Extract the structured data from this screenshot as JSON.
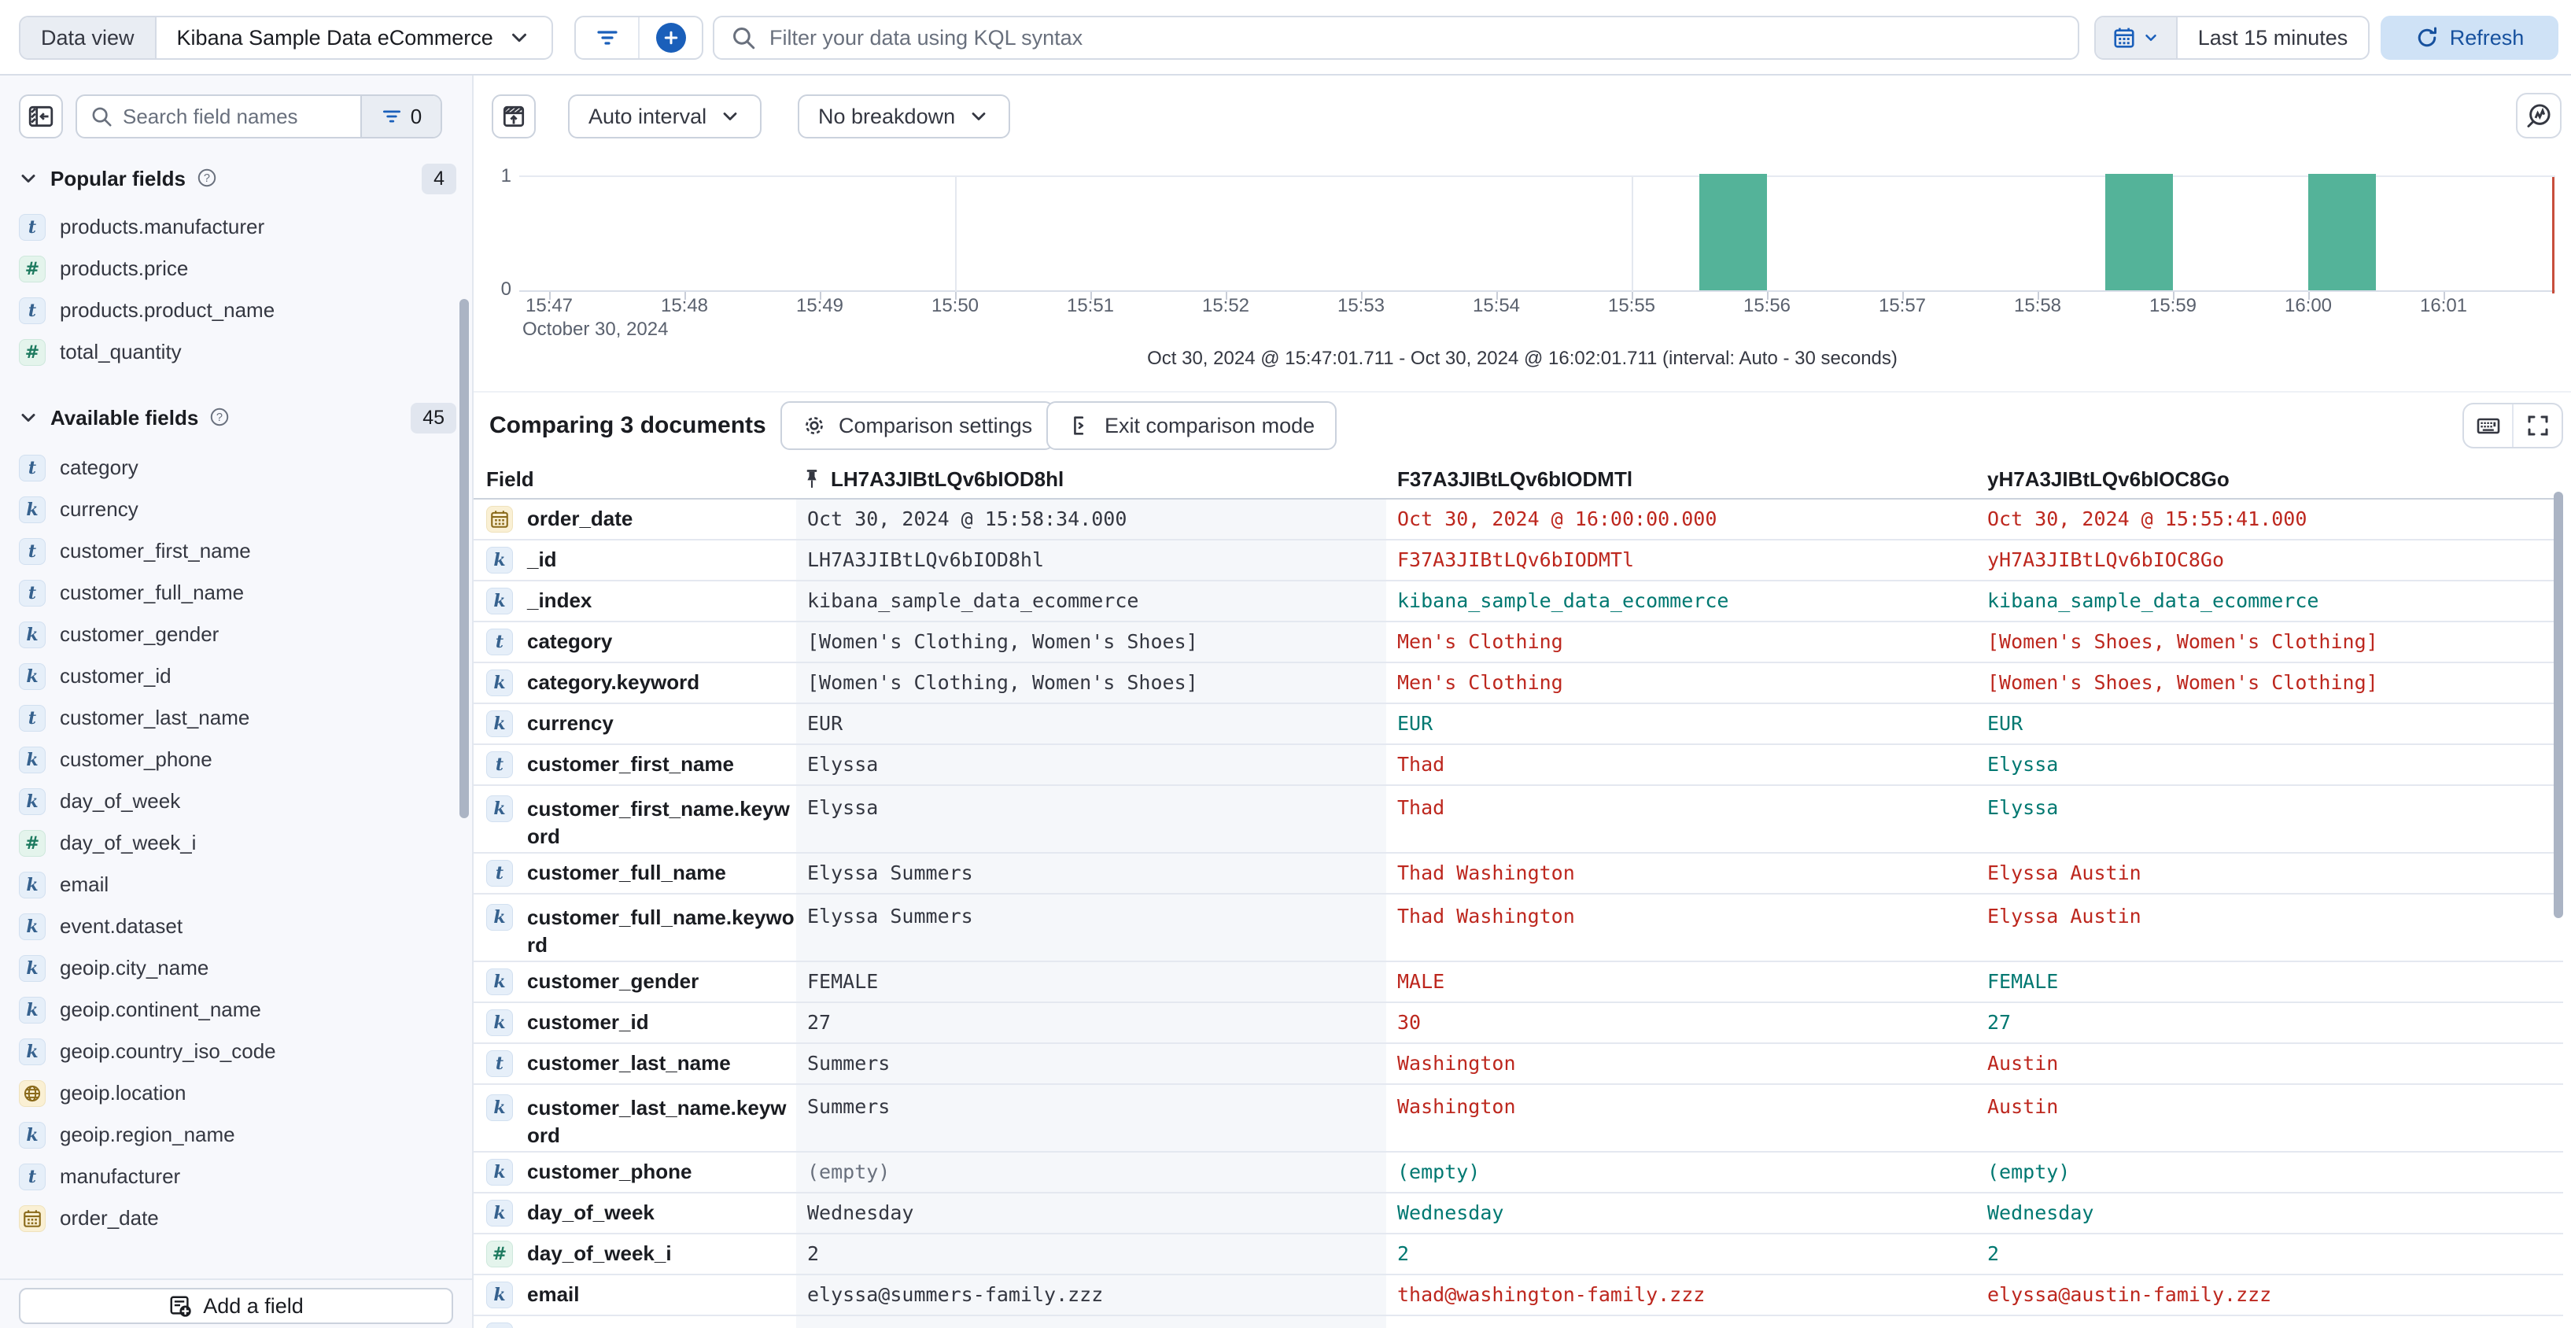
{
  "colors": {
    "accent": "#1A5FBA",
    "refresh_bg": "#CFE2F6",
    "refresh_text": "#17519E",
    "bar": "#54B399",
    "time_marker": "#C84E3C",
    "match": "#007871",
    "diff": "#BD271E",
    "base": "#343741",
    "muted": "#69707D"
  },
  "topbar": {
    "data_view_label": "Data view",
    "data_view_value": "Kibana Sample Data eCommerce",
    "kql_placeholder": "Filter your data using KQL syntax",
    "time_range": "Last 15 minutes",
    "refresh_label": "Refresh"
  },
  "sidebar": {
    "search_placeholder": "Search field names",
    "filter_count": "0",
    "popular": {
      "label": "Popular fields",
      "count": "4",
      "items": [
        {
          "icon": "t",
          "name": "products.manufacturer"
        },
        {
          "icon": "num",
          "name": "products.price"
        },
        {
          "icon": "t",
          "name": "products.product_name"
        },
        {
          "icon": "num",
          "name": "total_quantity"
        }
      ]
    },
    "available": {
      "label": "Available fields",
      "count": "45",
      "items": [
        {
          "icon": "t",
          "name": "category"
        },
        {
          "icon": "k",
          "name": "currency"
        },
        {
          "icon": "t",
          "name": "customer_first_name"
        },
        {
          "icon": "t",
          "name": "customer_full_name"
        },
        {
          "icon": "k",
          "name": "customer_gender"
        },
        {
          "icon": "k",
          "name": "customer_id"
        },
        {
          "icon": "t",
          "name": "customer_last_name"
        },
        {
          "icon": "k",
          "name": "customer_phone"
        },
        {
          "icon": "k",
          "name": "day_of_week"
        },
        {
          "icon": "num",
          "name": "day_of_week_i"
        },
        {
          "icon": "k",
          "name": "email"
        },
        {
          "icon": "k",
          "name": "event.dataset"
        },
        {
          "icon": "k",
          "name": "geoip.city_name"
        },
        {
          "icon": "k",
          "name": "geoip.continent_name"
        },
        {
          "icon": "k",
          "name": "geoip.country_iso_code"
        },
        {
          "icon": "geo",
          "name": "geoip.location"
        },
        {
          "icon": "k",
          "name": "geoip.region_name"
        },
        {
          "icon": "t",
          "name": "manufacturer"
        },
        {
          "icon": "date",
          "name": "order_date"
        }
      ]
    },
    "add_field_label": "Add a field"
  },
  "chart": {
    "interval_button": "Auto interval",
    "breakdown_button": "No breakdown",
    "y_ticks": [
      "1",
      "0"
    ],
    "x_ticks": [
      "15:47",
      "15:48",
      "15:49",
      "15:50",
      "15:51",
      "15:52",
      "15:53",
      "15:54",
      "15:55",
      "15:56",
      "15:57",
      "15:58",
      "15:59",
      "16:00",
      "16:01"
    ],
    "x_date_label": "October 30, 2024",
    "grid_tick_indexes": [
      3,
      8,
      13
    ],
    "bars": [
      {
        "time": "15:55:30",
        "count": 1,
        "offset_min": 8.5
      },
      {
        "time": "15:58:30",
        "count": 1,
        "offset_min": 11.5
      },
      {
        "time": "16:00:00",
        "count": 1,
        "offset_min": 13
      }
    ],
    "range_label": "Oct 30, 2024 @ 15:47:01.711 - Oct 30, 2024 @ 16:02:01.711 (interval: Auto - 30 seconds)"
  },
  "comparison": {
    "title": "Comparing 3 documents",
    "settings_label": "Comparison settings",
    "exit_label": "Exit comparison mode"
  },
  "table": {
    "field_header": "Field",
    "doc_headers": [
      "LH7A3JIBtLQv6bIOD8hl",
      "F37A3JIBtLQv6bIODMTl",
      "yH7A3JIBtLQv6bIOC8Go"
    ],
    "rows": [
      {
        "field": "order_date",
        "icon": "date",
        "tall": false,
        "values": [
          {
            "text": "Oct 30, 2024 @ 15:58:34.000",
            "tone": "base"
          },
          {
            "text": "Oct 30, 2024 @ 16:00:00.000",
            "tone": "diff"
          },
          {
            "text": "Oct 30, 2024 @ 15:55:41.000",
            "tone": "diff"
          }
        ]
      },
      {
        "field": "_id",
        "icon": "k",
        "tall": false,
        "values": [
          {
            "text": "LH7A3JIBtLQv6bIOD8hl",
            "tone": "base"
          },
          {
            "text": "F37A3JIBtLQv6bIODMTl",
            "tone": "diff"
          },
          {
            "text": "yH7A3JIBtLQv6bIOC8Go",
            "tone": "diff"
          }
        ]
      },
      {
        "field": "_index",
        "icon": "k",
        "tall": false,
        "values": [
          {
            "text": "kibana_sample_data_ecommerce",
            "tone": "base"
          },
          {
            "text": "kibana_sample_data_ecommerce",
            "tone": "match"
          },
          {
            "text": "kibana_sample_data_ecommerce",
            "tone": "match"
          }
        ]
      },
      {
        "field": "category",
        "icon": "t",
        "tall": false,
        "values": [
          {
            "text": "[Women's Clothing, Women's Shoes]",
            "tone": "base"
          },
          {
            "text": "Men's Clothing",
            "tone": "diff"
          },
          {
            "text": "[Women's Shoes, Women's Clothing]",
            "tone": "diff"
          }
        ]
      },
      {
        "field": "category.keyword",
        "icon": "k",
        "tall": false,
        "values": [
          {
            "text": "[Women's Clothing, Women's Shoes]",
            "tone": "base"
          },
          {
            "text": "Men's Clothing",
            "tone": "diff"
          },
          {
            "text": "[Women's Shoes, Women's Clothing]",
            "tone": "diff"
          }
        ]
      },
      {
        "field": "currency",
        "icon": "k",
        "tall": false,
        "values": [
          {
            "text": "EUR",
            "tone": "base"
          },
          {
            "text": "EUR",
            "tone": "match"
          },
          {
            "text": "EUR",
            "tone": "match"
          }
        ]
      },
      {
        "field": "customer_first_name",
        "icon": "t",
        "tall": false,
        "values": [
          {
            "text": "Elyssa",
            "tone": "base"
          },
          {
            "text": "Thad",
            "tone": "diff"
          },
          {
            "text": "Elyssa",
            "tone": "match"
          }
        ]
      },
      {
        "field": "customer_first_name.keyword",
        "icon": "k",
        "tall": true,
        "values": [
          {
            "text": "Elyssa",
            "tone": "base"
          },
          {
            "text": "Thad",
            "tone": "diff"
          },
          {
            "text": "Elyssa",
            "tone": "match"
          }
        ]
      },
      {
        "field": "customer_full_name",
        "icon": "t",
        "tall": false,
        "values": [
          {
            "text": "Elyssa Summers",
            "tone": "base"
          },
          {
            "text": "Thad Washington",
            "tone": "diff"
          },
          {
            "text": "Elyssa Austin",
            "tone": "diff"
          }
        ]
      },
      {
        "field": "customer_full_name.keyword",
        "icon": "k",
        "tall": true,
        "values": [
          {
            "text": "Elyssa Summers",
            "tone": "base"
          },
          {
            "text": "Thad Washington",
            "tone": "diff"
          },
          {
            "text": "Elyssa Austin",
            "tone": "diff"
          }
        ]
      },
      {
        "field": "customer_gender",
        "icon": "k",
        "tall": false,
        "values": [
          {
            "text": "FEMALE",
            "tone": "base"
          },
          {
            "text": "MALE",
            "tone": "diff"
          },
          {
            "text": "FEMALE",
            "tone": "match"
          }
        ]
      },
      {
        "field": "customer_id",
        "icon": "k",
        "tall": false,
        "values": [
          {
            "text": "27",
            "tone": "base"
          },
          {
            "text": "30",
            "tone": "diff"
          },
          {
            "text": "27",
            "tone": "match"
          }
        ]
      },
      {
        "field": "customer_last_name",
        "icon": "t",
        "tall": false,
        "values": [
          {
            "text": "Summers",
            "tone": "base"
          },
          {
            "text": "Washington",
            "tone": "diff"
          },
          {
            "text": "Austin",
            "tone": "diff"
          }
        ]
      },
      {
        "field": "customer_last_name.keyword",
        "icon": "k",
        "tall": true,
        "values": [
          {
            "text": "Summers",
            "tone": "base"
          },
          {
            "text": "Washington",
            "tone": "diff"
          },
          {
            "text": "Austin",
            "tone": "diff"
          }
        ]
      },
      {
        "field": "customer_phone",
        "icon": "k",
        "tall": false,
        "values": [
          {
            "text": "(empty)",
            "tone": "muted"
          },
          {
            "text": "(empty)",
            "tone": "match"
          },
          {
            "text": "(empty)",
            "tone": "match"
          }
        ]
      },
      {
        "field": "day_of_week",
        "icon": "k",
        "tall": false,
        "values": [
          {
            "text": "Wednesday",
            "tone": "base"
          },
          {
            "text": "Wednesday",
            "tone": "match"
          },
          {
            "text": "Wednesday",
            "tone": "match"
          }
        ]
      },
      {
        "field": "day_of_week_i",
        "icon": "num",
        "tall": false,
        "values": [
          {
            "text": "2",
            "tone": "base"
          },
          {
            "text": "2",
            "tone": "match"
          },
          {
            "text": "2",
            "tone": "match"
          }
        ]
      },
      {
        "field": "email",
        "icon": "k",
        "tall": false,
        "values": [
          {
            "text": "elyssa@summers-family.zzz",
            "tone": "base"
          },
          {
            "text": "thad@washington-family.zzz",
            "tone": "diff"
          },
          {
            "text": "elyssa@austin-family.zzz",
            "tone": "diff"
          }
        ]
      },
      {
        "field": "",
        "icon": "k",
        "tall": false,
        "values": [
          {
            "text": "",
            "tone": "base"
          },
          {
            "text": "",
            "tone": "base"
          },
          {
            "text": "",
            "tone": "base"
          }
        ]
      }
    ]
  },
  "icon_glyphs": {
    "k": "k",
    "t": "t",
    "num": "#"
  }
}
